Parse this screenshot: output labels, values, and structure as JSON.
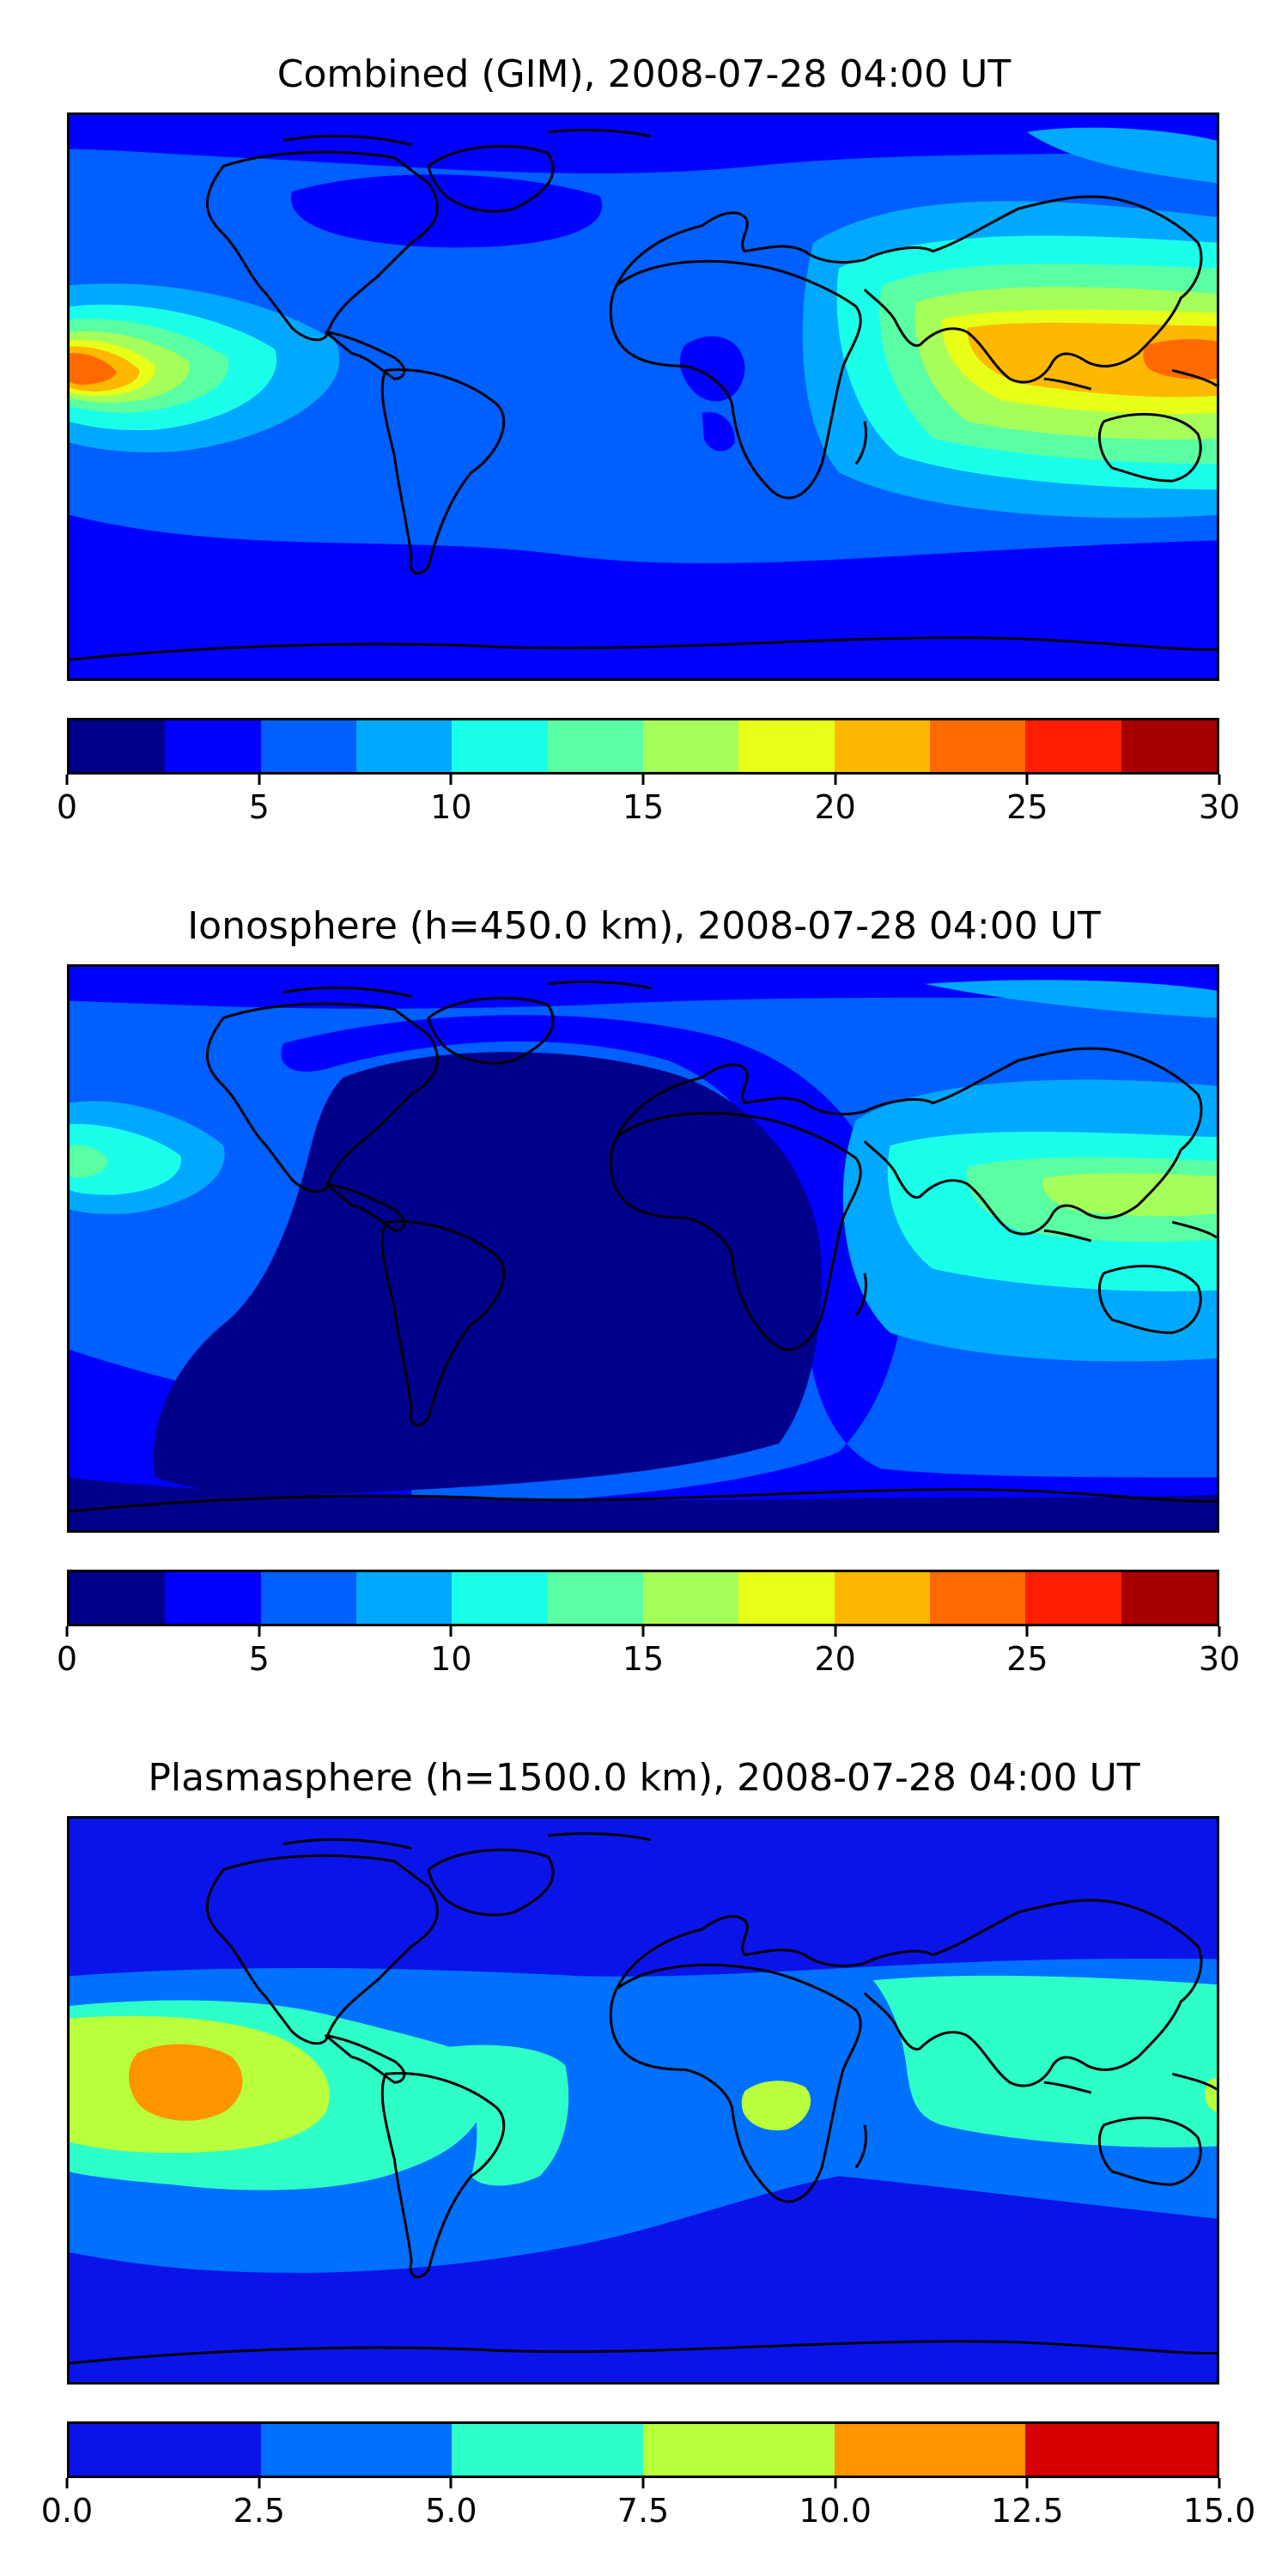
{
  "panels": [
    {
      "title": "Combined (GIM), 2008-07-28 04:00 UT",
      "colorbar": {
        "colors": [
          "#00008b",
          "#0000ff",
          "#005fff",
          "#00a9ff",
          "#1affea",
          "#5affa3",
          "#a5ff5a",
          "#e8ff17",
          "#ffb800",
          "#ff6a00",
          "#ff1e00",
          "#a80000"
        ],
        "tick_labels": [
          "0",
          "5",
          "10",
          "15",
          "20",
          "25",
          "30"
        ]
      }
    },
    {
      "title": "Ionosphere  (h=450.0 km), 2008-07-28 04:00 UT",
      "colorbar": {
        "colors": [
          "#00008b",
          "#0000ff",
          "#005fff",
          "#00a9ff",
          "#1affea",
          "#5affa3",
          "#a5ff5a",
          "#e8ff17",
          "#ffb800",
          "#ff6a00",
          "#ff1e00",
          "#a80000"
        ],
        "tick_labels": [
          "0",
          "5",
          "10",
          "15",
          "20",
          "25",
          "30"
        ]
      }
    },
    {
      "title": "Plasmasphere (h=1500.0 km), 2008-07-28 04:00 UT",
      "colorbar": {
        "colors": [
          "#0a14e8",
          "#0070ff",
          "#2effc8",
          "#b8ff3c",
          "#ff9500",
          "#d60000"
        ],
        "tick_labels": [
          "0.0",
          "2.5",
          "5.0",
          "7.5",
          "10.0",
          "12.5",
          "15.0"
        ]
      }
    }
  ]
}
